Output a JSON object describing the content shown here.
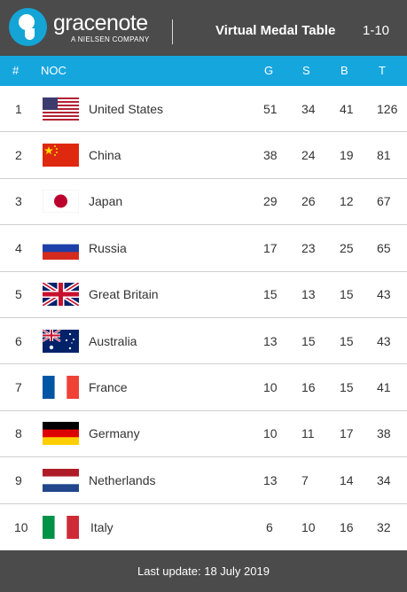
{
  "brand": {
    "name": "gracenote",
    "sub": "A NIELSEN COMPANY"
  },
  "header": {
    "title": "Virtual Medal Table",
    "range": "1-10"
  },
  "columns": {
    "rank": "#",
    "noc": "NOC",
    "gold": "G",
    "silver": "S",
    "bronze": "B",
    "total": "T"
  },
  "rows": [
    {
      "rank": "1",
      "country": "United States",
      "flag": "usa-flag",
      "g": "51",
      "s": "34",
      "b": "41",
      "t": "126"
    },
    {
      "rank": "2",
      "country": "China",
      "flag": "china-flag",
      "g": "38",
      "s": "24",
      "b": "19",
      "t": "81"
    },
    {
      "rank": "3",
      "country": "Japan",
      "flag": "japan-flag",
      "g": "29",
      "s": "26",
      "b": "12",
      "t": "67"
    },
    {
      "rank": "4",
      "country": "Russia",
      "flag": "russia-flag",
      "g": "17",
      "s": "23",
      "b": "25",
      "t": "65"
    },
    {
      "rank": "5",
      "country": "Great Britain",
      "flag": "great-britain-flag",
      "g": "15",
      "s": "13",
      "b": "15",
      "t": "43"
    },
    {
      "rank": "6",
      "country": "Australia",
      "flag": "australia-flag",
      "g": "13",
      "s": "15",
      "b": "15",
      "t": "43"
    },
    {
      "rank": "7",
      "country": "France",
      "flag": "france-flag",
      "g": "10",
      "s": "16",
      "b": "15",
      "t": "41"
    },
    {
      "rank": "8",
      "country": "Germany",
      "flag": "germany-flag",
      "g": "10",
      "s": "11",
      "b": "17",
      "t": "38"
    },
    {
      "rank": "9",
      "country": "Netherlands",
      "flag": "netherlands-flag",
      "g": "13",
      "s": "7",
      "b": "14",
      "t": "34"
    },
    {
      "rank": "10",
      "country": "Italy",
      "flag": "italy-flag",
      "g": "6",
      "s": "10",
      "b": "16",
      "t": "32"
    }
  ],
  "footer": {
    "text": "Last update: 18 July 2019"
  },
  "colors": {
    "accent": "#16a6de",
    "header_bg": "#4b4b4b",
    "logo": "#14a5d6"
  }
}
